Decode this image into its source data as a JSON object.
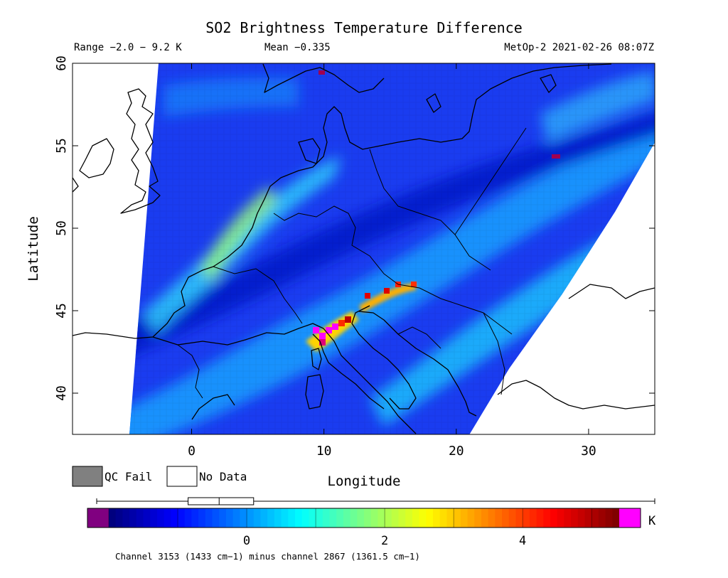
{
  "header": {
    "title": "SO2 Brightness Temperature Difference",
    "range": "Range −2.0 − 9.2 K",
    "mean": "Mean −0.335",
    "satellite_time": "MetOp-2 2021-02-26 08:07Z"
  },
  "map": {
    "lon_range": [
      -9,
      35
    ],
    "lat_range": [
      37.5,
      60
    ],
    "x_ticks": [
      "0",
      "10",
      "20",
      "30"
    ],
    "y_ticks": [
      "60",
      "55",
      "50",
      "45",
      "40"
    ],
    "xlabel": "Longitude",
    "ylabel": "Latitude"
  },
  "legend": {
    "qc_fail": {
      "label": "QC Fail",
      "color": "#808080"
    },
    "no_data": {
      "label": "No Data",
      "color": "#ffffff"
    }
  },
  "colorbar": {
    "range": [
      -2,
      5.4
    ],
    "ticks": [
      "0",
      "2",
      "4"
    ],
    "unit": "K",
    "underflow_color": "#800080",
    "overflow_color": "#ff00ff",
    "colors": [
      "#00007f",
      "#0000ff",
      "#0080ff",
      "#00ffff",
      "#80ff80",
      "#ffff00",
      "#ff8000",
      "#ff0000",
      "#800000"
    ],
    "boxplot": {
      "min": -2,
      "q1": -0.85,
      "median": -0.4,
      "q3": 0.1,
      "max": 5.4
    }
  },
  "footer": {
    "note": "Channel 3153 (1433 cm−1) minus channel 2867 (1361.5 cm−1)"
  }
}
